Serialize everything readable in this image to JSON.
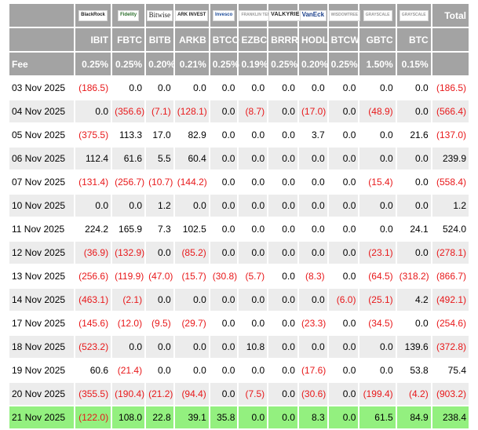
{
  "columns": [
    {
      "ticker": "IBIT",
      "fee": "0.25%",
      "logo": "BlackRock",
      "logo_class": ""
    },
    {
      "ticker": "FBTC",
      "fee": "0.25%",
      "logo": "Fidelity",
      "logo_class": "fidelity"
    },
    {
      "ticker": "BITB",
      "fee": "0.20%",
      "logo": "Bitwise",
      "logo_class": "bitwise"
    },
    {
      "ticker": "ARKB",
      "fee": "0.21%",
      "logo": "ARK INVEST",
      "logo_class": ""
    },
    {
      "ticker": "BTCO",
      "fee": "0.25%",
      "logo": "Invesco",
      "logo_class": "invesco"
    },
    {
      "ticker": "EZBC",
      "fee": "0.19%",
      "logo": "FRANKLIN TEMPLETON",
      "logo_class": "gray"
    },
    {
      "ticker": "BRRR",
      "fee": "0.25%",
      "logo": "VALKYRIE",
      "logo_class": "valkyrie"
    },
    {
      "ticker": "HODL",
      "fee": "0.20%",
      "logo": "VanEck",
      "logo_class": "vaneck"
    },
    {
      "ticker": "BTCW",
      "fee": "0.25%",
      "logo": "WISDOMTREE",
      "logo_class": "gray"
    },
    {
      "ticker": "GBTC",
      "fee": "1.50%",
      "logo": "GRAYSCALE",
      "logo_class": "gray"
    },
    {
      "ticker": "BTC",
      "fee": "0.15%",
      "logo": "GRAYSCALE",
      "logo_class": "gray"
    }
  ],
  "header": {
    "total_label": "Total",
    "fee_label": "Fee"
  },
  "rows": [
    {
      "date": "03 Nov 2025",
      "values": [
        "(186.5)",
        "0.0",
        "0.0",
        "0.0",
        "0.0",
        "0.0",
        "0.0",
        "0.0",
        "0.0",
        "0.0",
        "0.0"
      ],
      "total": "(186.5)"
    },
    {
      "date": "04 Nov 2025",
      "values": [
        "0.0",
        "(356.6)",
        "(7.1)",
        "(128.1)",
        "0.0",
        "(8.7)",
        "0.0",
        "(17.0)",
        "0.0",
        "(48.9)",
        "0.0"
      ],
      "total": "(566.4)"
    },
    {
      "date": "05 Nov 2025",
      "values": [
        "(375.5)",
        "113.3",
        "17.0",
        "82.9",
        "0.0",
        "0.0",
        "0.0",
        "3.7",
        "0.0",
        "0.0",
        "21.6"
      ],
      "total": "(137.0)"
    },
    {
      "date": "06 Nov 2025",
      "values": [
        "112.4",
        "61.6",
        "5.5",
        "60.4",
        "0.0",
        "0.0",
        "0.0",
        "0.0",
        "0.0",
        "0.0",
        "0.0"
      ],
      "total": "239.9"
    },
    {
      "date": "07 Nov 2025",
      "values": [
        "(131.4)",
        "(256.7)",
        "(10.7)",
        "(144.2)",
        "0.0",
        "0.0",
        "0.0",
        "0.0",
        "0.0",
        "(15.4)",
        "0.0"
      ],
      "total": "(558.4)"
    },
    {
      "date": "10 Nov 2025",
      "values": [
        "0.0",
        "0.0",
        "1.2",
        "0.0",
        "0.0",
        "0.0",
        "0.0",
        "0.0",
        "0.0",
        "0.0",
        "0.0"
      ],
      "total": "1.2"
    },
    {
      "date": "11 Nov 2025",
      "values": [
        "224.2",
        "165.9",
        "7.3",
        "102.5",
        "0.0",
        "0.0",
        "0.0",
        "0.0",
        "0.0",
        "0.0",
        "24.1"
      ],
      "total": "524.0"
    },
    {
      "date": "12 Nov 2025",
      "values": [
        "(36.9)",
        "(132.9)",
        "0.0",
        "(85.2)",
        "0.0",
        "0.0",
        "0.0",
        "0.0",
        "0.0",
        "(23.1)",
        "0.0"
      ],
      "total": "(278.1)"
    },
    {
      "date": "13 Nov 2025",
      "values": [
        "(256.6)",
        "(119.9)",
        "(47.0)",
        "(15.7)",
        "(30.8)",
        "(5.7)",
        "0.0",
        "(8.3)",
        "0.0",
        "(64.5)",
        "(318.2)"
      ],
      "total": "(866.7)"
    },
    {
      "date": "14 Nov 2025",
      "values": [
        "(463.1)",
        "(2.1)",
        "0.0",
        "0.0",
        "0.0",
        "0.0",
        "0.0",
        "0.0",
        "(6.0)",
        "(25.1)",
        "4.2"
      ],
      "total": "(492.1)"
    },
    {
      "date": "17 Nov 2025",
      "values": [
        "(145.6)",
        "(12.0)",
        "(9.5)",
        "(29.7)",
        "0.0",
        "0.0",
        "0.0",
        "(23.3)",
        "0.0",
        "(34.5)",
        "0.0"
      ],
      "total": "(254.6)"
    },
    {
      "date": "18 Nov 2025",
      "values": [
        "(523.2)",
        "0.0",
        "0.0",
        "0.0",
        "0.0",
        "10.8",
        "0.0",
        "0.0",
        "0.0",
        "0.0",
        "139.6"
      ],
      "total": "(372.8)"
    },
    {
      "date": "19 Nov 2025",
      "values": [
        "60.6",
        "(21.4)",
        "0.0",
        "0.0",
        "0.0",
        "0.0",
        "0.0",
        "(17.6)",
        "0.0",
        "0.0",
        "53.8"
      ],
      "total": "75.4"
    },
    {
      "date": "20 Nov 2025",
      "values": [
        "(355.5)",
        "(190.4)",
        "(21.2)",
        "(94.4)",
        "0.0",
        "(7.5)",
        "0.0",
        "(30.6)",
        "0.0",
        "(199.4)",
        "(4.2)"
      ],
      "total": "(903.2)"
    },
    {
      "date": "21 Nov 2025",
      "values": [
        "(122.0)",
        "108.0",
        "22.8",
        "39.1",
        "35.8",
        "0.0",
        "0.0",
        "8.3",
        "0.0",
        "61.5",
        "84.9"
      ],
      "total": "238.4"
    }
  ],
  "colors": {
    "header_bg": "#a3a3a3",
    "stripe": "#ececec",
    "highlight": "#93f07f",
    "negative": "#e8181a"
  }
}
